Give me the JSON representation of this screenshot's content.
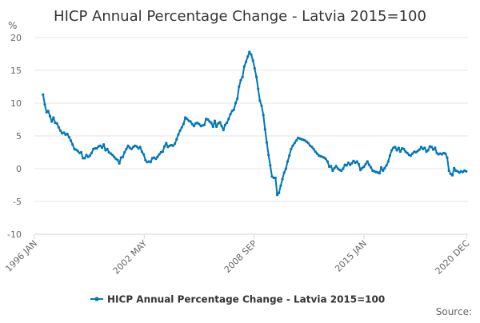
{
  "chart_data": {
    "type": "line",
    "title": "HICP Annual Percentage Change - Latvia 2015=100",
    "ylabel": "%",
    "xlabel": "",
    "ylim": [
      -10,
      20
    ],
    "y_ticks": [
      20,
      15,
      10,
      5,
      0,
      -5,
      -10
    ],
    "x_range": [
      1996.0,
      2021.0
    ],
    "x_ticks": [
      {
        "label": "1996 JAN",
        "value": 1996.0
      },
      {
        "label": "2002 MAY",
        "value": 2002.33
      },
      {
        "label": "2008 SEP",
        "value": 2008.67
      },
      {
        "label": "2015 JAN",
        "value": 2015.0
      },
      {
        "label": "2020 DEC",
        "value": 2020.92
      }
    ],
    "grid": true,
    "legend_position": "bottom-center",
    "series": [
      {
        "name": "HICP Annual Percentage Change - Latvia 2015=100",
        "color": "#0077b6",
        "points": [
          [
            1996.5,
            11.3
          ],
          [
            1996.6,
            9.8
          ],
          [
            1996.7,
            8.6
          ],
          [
            1996.8,
            8.8
          ],
          [
            1996.9,
            8.0
          ],
          [
            1997.0,
            7.2
          ],
          [
            1997.1,
            7.8
          ],
          [
            1997.2,
            7.0
          ],
          [
            1997.3,
            6.9
          ],
          [
            1997.4,
            6.3
          ],
          [
            1997.5,
            5.8
          ],
          [
            1997.6,
            5.4
          ],
          [
            1997.7,
            5.5
          ],
          [
            1997.8,
            5.2
          ],
          [
            1997.9,
            5.3
          ],
          [
            1998.0,
            4.8
          ],
          [
            1998.1,
            4.3
          ],
          [
            1998.2,
            3.7
          ],
          [
            1998.3,
            3.0
          ],
          [
            1998.4,
            2.9
          ],
          [
            1998.5,
            2.7
          ],
          [
            1998.6,
            2.4
          ],
          [
            1998.7,
            2.5
          ],
          [
            1998.8,
            1.6
          ],
          [
            1998.9,
            1.6
          ],
          [
            1999.0,
            2.1
          ],
          [
            1999.1,
            1.8
          ],
          [
            1999.2,
            2.0
          ],
          [
            1999.3,
            2.4
          ],
          [
            1999.4,
            3.0
          ],
          [
            1999.5,
            3.1
          ],
          [
            1999.6,
            3.1
          ],
          [
            1999.7,
            3.4
          ],
          [
            1999.8,
            3.5
          ],
          [
            1999.9,
            3.2
          ],
          [
            2000.0,
            3.7
          ],
          [
            2000.1,
            2.8
          ],
          [
            2000.2,
            3.0
          ],
          [
            2000.3,
            2.5
          ],
          [
            2000.4,
            2.3
          ],
          [
            2000.5,
            2.1
          ],
          [
            2000.6,
            1.8
          ],
          [
            2000.7,
            1.5
          ],
          [
            2000.8,
            1.3
          ],
          [
            2000.9,
            0.8
          ],
          [
            2001.0,
            1.7
          ],
          [
            2001.1,
            1.8
          ],
          [
            2001.2,
            2.5
          ],
          [
            2001.3,
            3.0
          ],
          [
            2001.4,
            3.5
          ],
          [
            2001.5,
            3.2
          ],
          [
            2001.6,
            3.0
          ],
          [
            2001.7,
            3.3
          ],
          [
            2001.8,
            3.5
          ],
          [
            2001.9,
            3.4
          ],
          [
            2002.0,
            3.1
          ],
          [
            2002.1,
            3.3
          ],
          [
            2002.2,
            2.6
          ],
          [
            2002.3,
            2.2
          ],
          [
            2002.4,
            1.3
          ],
          [
            2002.5,
            1.0
          ],
          [
            2002.6,
            1.1
          ],
          [
            2002.7,
            1.0
          ],
          [
            2002.8,
            1.6
          ],
          [
            2002.9,
            1.7
          ],
          [
            2003.0,
            1.5
          ],
          [
            2003.1,
            1.8
          ],
          [
            2003.2,
            2.2
          ],
          [
            2003.3,
            2.5
          ],
          [
            2003.4,
            2.6
          ],
          [
            2003.5,
            3.4
          ],
          [
            2003.6,
            3.9
          ],
          [
            2003.7,
            3.3
          ],
          [
            2003.8,
            3.5
          ],
          [
            2003.9,
            3.6
          ],
          [
            2004.0,
            3.5
          ],
          [
            2004.1,
            3.8
          ],
          [
            2004.2,
            4.5
          ],
          [
            2004.3,
            5.2
          ],
          [
            2004.4,
            5.8
          ],
          [
            2004.5,
            6.3
          ],
          [
            2004.6,
            6.8
          ],
          [
            2004.7,
            7.8
          ],
          [
            2004.8,
            7.6
          ],
          [
            2004.9,
            7.3
          ],
          [
            2005.0,
            7.2
          ],
          [
            2005.1,
            6.8
          ],
          [
            2005.2,
            6.5
          ],
          [
            2005.3,
            6.9
          ],
          [
            2005.4,
            7.0
          ],
          [
            2005.5,
            6.8
          ],
          [
            2005.6,
            6.5
          ],
          [
            2005.7,
            6.6
          ],
          [
            2005.8,
            6.7
          ],
          [
            2005.9,
            7.6
          ],
          [
            2006.0,
            7.5
          ],
          [
            2006.1,
            7.2
          ],
          [
            2006.2,
            7.0
          ],
          [
            2006.3,
            6.4
          ],
          [
            2006.4,
            7.3
          ],
          [
            2006.5,
            6.4
          ],
          [
            2006.6,
            6.9
          ],
          [
            2006.7,
            7.1
          ],
          [
            2006.8,
            6.5
          ],
          [
            2006.9,
            5.9
          ],
          [
            2007.0,
            6.7
          ],
          [
            2007.1,
            7.0
          ],
          [
            2007.2,
            7.6
          ],
          [
            2007.3,
            8.3
          ],
          [
            2007.4,
            8.8
          ],
          [
            2007.5,
            9.0
          ],
          [
            2007.6,
            10.0
          ],
          [
            2007.7,
            10.7
          ],
          [
            2007.8,
            12.5
          ],
          [
            2007.9,
            13.5
          ],
          [
            2008.0,
            14.0
          ],
          [
            2008.1,
            15.6
          ],
          [
            2008.2,
            16.3
          ],
          [
            2008.3,
            17.1
          ],
          [
            2008.4,
            17.8
          ],
          [
            2008.5,
            17.4
          ],
          [
            2008.6,
            16.5
          ],
          [
            2008.7,
            15.3
          ],
          [
            2008.8,
            14.0
          ],
          [
            2008.9,
            12.2
          ],
          [
            2009.0,
            10.4
          ],
          [
            2009.1,
            9.6
          ],
          [
            2009.2,
            8.2
          ],
          [
            2009.3,
            6.0
          ],
          [
            2009.4,
            4.0
          ],
          [
            2009.5,
            2.1
          ],
          [
            2009.6,
            0.5
          ],
          [
            2009.7,
            -1.2
          ],
          [
            2009.8,
            -1.4
          ],
          [
            2009.9,
            -1.4
          ],
          [
            2010.0,
            -4.0
          ],
          [
            2010.1,
            -3.7
          ],
          [
            2010.2,
            -2.6
          ],
          [
            2010.3,
            -1.6
          ],
          [
            2010.4,
            -0.6
          ],
          [
            2010.5,
            0.0
          ],
          [
            2010.6,
            1.1
          ],
          [
            2010.7,
            2.0
          ],
          [
            2010.8,
            3.0
          ],
          [
            2010.9,
            3.5
          ],
          [
            2011.0,
            3.9
          ],
          [
            2011.1,
            4.3
          ],
          [
            2011.2,
            4.7
          ],
          [
            2011.3,
            4.6
          ],
          [
            2011.4,
            4.5
          ],
          [
            2011.5,
            4.4
          ],
          [
            2011.6,
            4.3
          ],
          [
            2011.7,
            4.1
          ],
          [
            2011.8,
            3.9
          ],
          [
            2011.9,
            3.5
          ],
          [
            2012.0,
            3.3
          ],
          [
            2012.1,
            3.0
          ],
          [
            2012.2,
            2.6
          ],
          [
            2012.3,
            2.3
          ],
          [
            2012.4,
            2.0
          ],
          [
            2012.5,
            1.9
          ],
          [
            2012.6,
            1.8
          ],
          [
            2012.7,
            1.7
          ],
          [
            2012.8,
            1.5
          ],
          [
            2012.9,
            1.1
          ],
          [
            2013.0,
            0.3
          ],
          [
            2013.1,
            0.4
          ],
          [
            2013.2,
            -0.3
          ],
          [
            2013.3,
            0.1
          ],
          [
            2013.4,
            0.4
          ],
          [
            2013.5,
            0.0
          ],
          [
            2013.6,
            -0.2
          ],
          [
            2013.7,
            -0.3
          ],
          [
            2013.8,
            0.0
          ],
          [
            2013.9,
            0.6
          ],
          [
            2014.0,
            0.5
          ],
          [
            2014.1,
            0.9
          ],
          [
            2014.2,
            0.6
          ],
          [
            2014.3,
            0.8
          ],
          [
            2014.4,
            1.2
          ],
          [
            2014.5,
            0.9
          ],
          [
            2014.6,
            1.1
          ],
          [
            2014.7,
            0.7
          ],
          [
            2014.8,
            -0.2
          ],
          [
            2014.9,
            0.1
          ],
          [
            2015.0,
            0.3
          ],
          [
            2015.1,
            0.7
          ],
          [
            2015.2,
            1.1
          ],
          [
            2015.3,
            0.6
          ],
          [
            2015.4,
            0.2
          ],
          [
            2015.5,
            -0.3
          ],
          [
            2015.6,
            -0.4
          ],
          [
            2015.7,
            -0.5
          ],
          [
            2015.8,
            -0.6
          ],
          [
            2015.9,
            -0.7
          ],
          [
            2016.0,
            0.2
          ],
          [
            2016.1,
            -0.3
          ],
          [
            2016.2,
            0.1
          ],
          [
            2016.3,
            0.5
          ],
          [
            2016.4,
            1.1
          ],
          [
            2016.5,
            2.0
          ],
          [
            2016.6,
            2.8
          ],
          [
            2016.7,
            3.2
          ],
          [
            2016.8,
            3.3
          ],
          [
            2016.9,
            2.8
          ],
          [
            2017.0,
            3.2
          ],
          [
            2017.1,
            2.6
          ],
          [
            2017.2,
            3.1
          ],
          [
            2017.3,
            3.0
          ],
          [
            2017.4,
            2.6
          ],
          [
            2017.5,
            2.4
          ],
          [
            2017.6,
            2.1
          ],
          [
            2017.7,
            2.0
          ],
          [
            2017.8,
            2.3
          ],
          [
            2017.9,
            2.6
          ],
          [
            2018.0,
            2.5
          ],
          [
            2018.1,
            2.7
          ],
          [
            2018.2,
            2.9
          ],
          [
            2018.3,
            3.3
          ],
          [
            2018.4,
            3.0
          ],
          [
            2018.5,
            3.2
          ],
          [
            2018.6,
            2.6
          ],
          [
            2018.7,
            2.8
          ],
          [
            2018.8,
            3.4
          ],
          [
            2018.9,
            3.3
          ],
          [
            2019.0,
            2.9
          ],
          [
            2019.1,
            3.2
          ],
          [
            2019.2,
            2.4
          ],
          [
            2019.3,
            2.2
          ],
          [
            2019.4,
            2.3
          ],
          [
            2019.5,
            2.2
          ],
          [
            2019.6,
            2.4
          ],
          [
            2019.7,
            2.3
          ],
          [
            2019.8,
            1.7
          ],
          [
            2019.9,
            -0.3
          ],
          [
            2020.0,
            -0.8
          ],
          [
            2020.1,
            -1.0
          ],
          [
            2020.2,
            0.1
          ],
          [
            2020.3,
            -0.3
          ],
          [
            2020.4,
            -0.4
          ],
          [
            2020.5,
            -0.6
          ],
          [
            2020.6,
            -0.4
          ],
          [
            2020.7,
            -0.5
          ],
          [
            2020.8,
            -0.3
          ],
          [
            2020.9,
            -0.4
          ]
        ]
      }
    ],
    "source_label": "Source:"
  },
  "colors": {
    "series": "#0077b6",
    "grid": "#e6e6e6",
    "axis": "#ccd6eb",
    "text": "#333333",
    "label": "#666666"
  }
}
